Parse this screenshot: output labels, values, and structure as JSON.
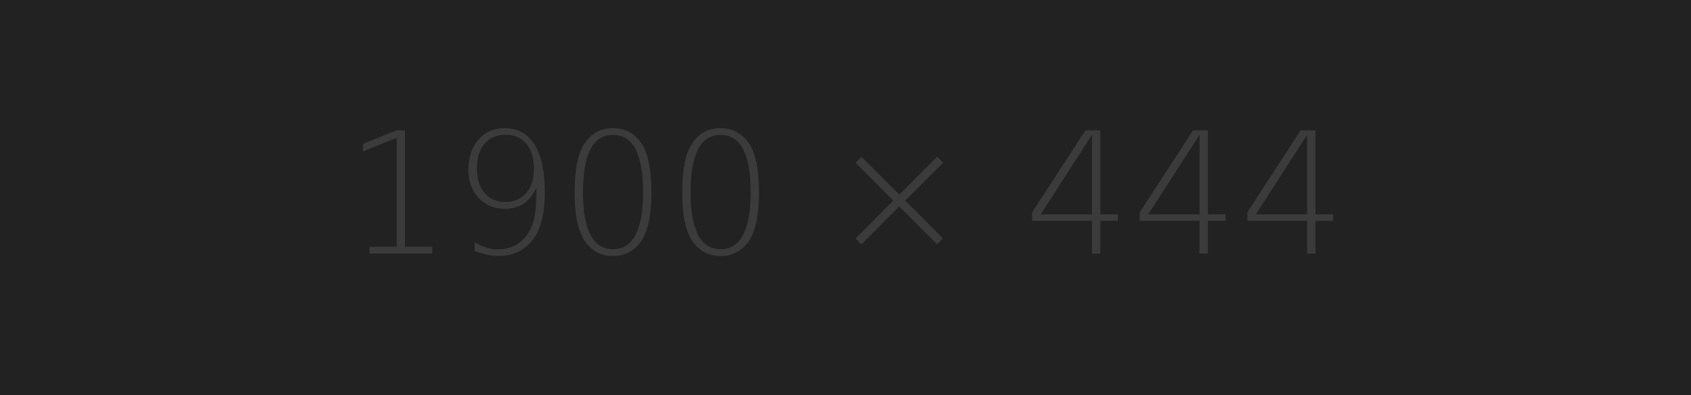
{
  "placeholder": {
    "text": "1900 × 444",
    "background_color": "#222222",
    "text_color": "#3b3b3b"
  }
}
